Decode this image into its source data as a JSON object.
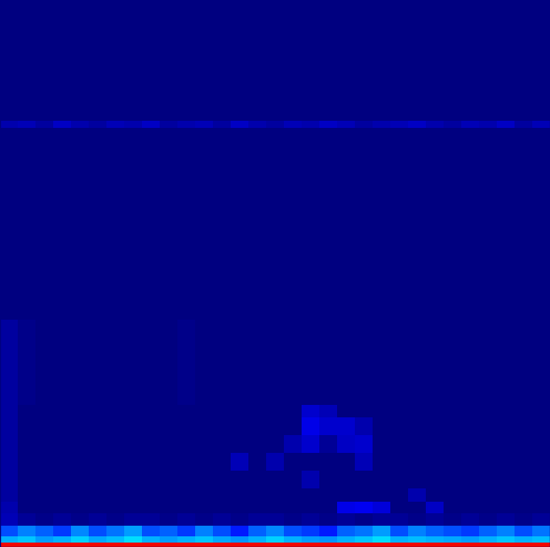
{
  "chart_data": {
    "type": "heatmap",
    "color": "jet",
    "tick_labels": false,
    "xlim": [
      0,
      620
    ],
    "ylim": [
      616,
      0
    ],
    "zlim": [
      0,
      1
    ],
    "x": [
      0,
      20,
      40,
      60,
      80,
      100,
      120,
      140,
      160,
      180,
      200,
      220,
      240,
      260,
      280,
      300,
      320,
      340,
      360,
      380,
      400,
      420,
      440,
      460,
      480,
      500,
      520,
      540,
      560,
      580,
      600,
      620
    ],
    "y": [
      0,
      136,
      144,
      360,
      456,
      470,
      490,
      510,
      530,
      550,
      565,
      578,
      592,
      604,
      611,
      616
    ],
    "cells": [
      [
        0,
        0,
        0,
        0,
        0,
        0,
        0,
        0,
        0,
        0,
        0,
        0,
        0,
        0,
        0,
        0,
        0,
        0,
        0,
        0,
        0,
        0,
        0,
        0,
        0,
        0,
        0,
        0,
        0,
        0,
        0
      ],
      [
        0.04,
        0.05,
        0.03,
        0.06,
        0.04,
        0.03,
        0.05,
        0.04,
        0.06,
        0.03,
        0.04,
        0.05,
        0.03,
        0.06,
        0.04,
        0.03,
        0.05,
        0.04,
        0.06,
        0.05,
        0.03,
        0.04,
        0.05,
        0.06,
        0.04,
        0.03,
        0.05,
        0.04,
        0.06,
        0.03,
        0.05
      ],
      [
        0,
        0,
        0,
        0,
        0,
        0,
        0,
        0,
        0,
        0,
        0,
        0,
        0,
        0,
        0,
        0,
        0,
        0,
        0,
        0,
        0,
        0,
        0,
        0,
        0,
        0,
        0,
        0,
        0,
        0,
        0
      ],
      [
        0.03,
        0.01,
        0,
        0,
        0,
        0,
        0,
        0,
        0,
        0,
        0.01,
        0,
        0,
        0,
        0,
        0,
        0,
        0,
        0,
        0,
        0,
        0,
        0,
        0,
        0,
        0,
        0,
        0,
        0,
        0,
        0
      ],
      [
        0.03,
        0,
        0,
        0,
        0,
        0,
        0,
        0,
        0,
        0,
        0,
        0,
        0,
        0,
        0,
        0,
        0,
        0.07,
        0.05,
        0,
        0,
        0,
        0,
        0,
        0,
        0,
        0,
        0,
        0,
        0,
        0
      ],
      [
        0.03,
        0,
        0,
        0,
        0,
        0,
        0,
        0,
        0,
        0,
        0,
        0,
        0,
        0,
        0,
        0,
        0,
        0.09,
        0.07,
        0.07,
        0.04,
        0,
        0,
        0,
        0,
        0,
        0,
        0,
        0,
        0,
        0
      ],
      [
        0.03,
        0,
        0,
        0,
        0,
        0,
        0,
        0,
        0,
        0,
        0,
        0,
        0,
        0,
        0,
        0,
        0.04,
        0.07,
        0.02,
        0.06,
        0.07,
        0,
        0,
        0,
        0,
        0,
        0,
        0,
        0,
        0,
        0
      ],
      [
        0.03,
        0,
        0,
        0,
        0,
        0,
        0,
        0,
        0,
        0,
        0,
        0,
        0,
        0.05,
        0,
        0.04,
        0,
        0,
        0,
        0,
        0.05,
        0,
        0,
        0,
        0,
        0,
        0,
        0,
        0,
        0,
        0
      ],
      [
        0.03,
        0,
        0,
        0,
        0,
        0,
        0,
        0,
        0,
        0,
        0,
        0,
        0,
        0,
        0,
        0,
        0,
        0.04,
        0,
        0,
        0,
        0,
        0,
        0,
        0,
        0,
        0,
        0,
        0,
        0,
        0
      ],
      [
        0.03,
        0,
        0,
        0,
        0,
        0,
        0,
        0,
        0,
        0,
        0,
        0,
        0,
        0,
        0,
        0,
        0,
        0,
        0,
        0,
        0,
        0,
        0,
        0.04,
        0,
        0,
        0,
        0,
        0,
        0,
        0
      ],
      [
        0.04,
        0,
        0,
        0,
        0,
        0,
        0,
        0,
        0,
        0,
        0,
        0,
        0,
        0,
        0,
        0,
        0,
        0,
        0,
        0.09,
        0.1,
        0.08,
        0,
        0,
        0.06,
        0,
        0,
        0,
        0,
        0,
        0
      ],
      [
        0.05,
        0.02,
        0.01,
        0.02,
        0.01,
        0.02,
        0.01,
        0.02,
        0.02,
        0.01,
        0.02,
        0.01,
        0.02,
        0.01,
        0.02,
        0.02,
        0.01,
        0.02,
        0.01,
        0.02,
        0.01,
        0.02,
        0.02,
        0.01,
        0.02,
        0.01,
        0.02,
        0.01,
        0.02,
        0.01,
        0.02
      ],
      [
        0.2,
        0.25,
        0.22,
        0.18,
        0.26,
        0.2,
        0.24,
        0.28,
        0.2,
        0.22,
        0.18,
        0.25,
        0.2,
        0.15,
        0.22,
        0.26,
        0.2,
        0.18,
        0.15,
        0.22,
        0.24,
        0.28,
        0.2,
        0.25,
        0.22,
        0.2,
        0.18,
        0.22,
        0.25,
        0.2,
        0.24
      ],
      [
        0.3,
        0.32,
        0.28,
        0.3,
        0.33,
        0.29,
        0.31,
        0.34,
        0.3,
        0.28,
        0.3,
        0.32,
        0.29,
        0.27,
        0.3,
        0.33,
        0.3,
        0.28,
        0.27,
        0.3,
        0.32,
        0.34,
        0.3,
        0.31,
        0.3,
        0.29,
        0.28,
        0.3,
        0.32,
        0.3,
        0.31
      ],
      [
        0.9,
        0.9,
        0.9,
        0.9,
        0.9,
        0.9,
        0.9,
        0.9,
        0.9,
        0.9,
        0.9,
        0.9,
        0.9,
        0.9,
        0.9,
        0.9,
        0.9,
        0.9,
        0.9,
        0.9,
        0.9,
        0.9,
        0.9,
        0.9,
        0.9,
        0.9,
        0.9,
        0.9,
        0.9,
        0.9,
        0.9
      ]
    ]
  }
}
